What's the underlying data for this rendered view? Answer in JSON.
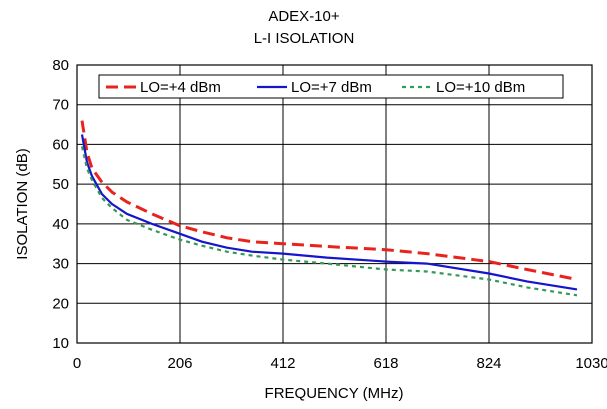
{
  "chart_data": {
    "type": "line",
    "title": "ADEX-10+",
    "subtitle": "L-I ISOLATION",
    "xlabel": "FREQUENCY (MHz)",
    "ylabel": "ISOLATION (dB)",
    "xlim": [
      0,
      1030
    ],
    "ylim": [
      10,
      80
    ],
    "xticks": [
      0,
      206,
      412,
      618,
      824,
      1030
    ],
    "yticks": [
      10,
      20,
      30,
      40,
      50,
      60,
      70,
      80
    ],
    "grid": true,
    "legend_position": "top",
    "series": [
      {
        "name": "LO=+4 dBm",
        "color": "#e8221c",
        "dash": "dashed",
        "x": [
          10,
          20,
          30,
          50,
          70,
          100,
          150,
          206,
          250,
          300,
          350,
          412,
          500,
          618,
          700,
          824,
          900,
          1000
        ],
        "y": [
          66,
          58,
          54,
          50.5,
          48,
          45.5,
          42.5,
          39.5,
          38,
          36.5,
          35.5,
          35,
          34.3,
          33.5,
          32.5,
          30.5,
          28.5,
          26
        ]
      },
      {
        "name": "LO=+7 dBm",
        "color": "#1515cc",
        "dash": "solid",
        "x": [
          10,
          20,
          30,
          50,
          70,
          100,
          150,
          206,
          250,
          300,
          350,
          412,
          500,
          618,
          700,
          824,
          900,
          1000
        ],
        "y": [
          62.5,
          55.5,
          52,
          47.5,
          45,
          42.5,
          40,
          37.5,
          35.5,
          34,
          33,
          32.5,
          31.5,
          30.5,
          30,
          27.5,
          25.5,
          23.5
        ]
      },
      {
        "name": "LO=+10 dBm",
        "color": "#339955",
        "dash": "dotted",
        "x": [
          10,
          20,
          30,
          50,
          70,
          100,
          150,
          206,
          250,
          300,
          350,
          412,
          500,
          618,
          700,
          824,
          900,
          1000
        ],
        "y": [
          59.5,
          54,
          51,
          46.5,
          44,
          41,
          38.5,
          36,
          34.5,
          33,
          32,
          31,
          30,
          28.5,
          28,
          26,
          24,
          22
        ]
      }
    ]
  }
}
